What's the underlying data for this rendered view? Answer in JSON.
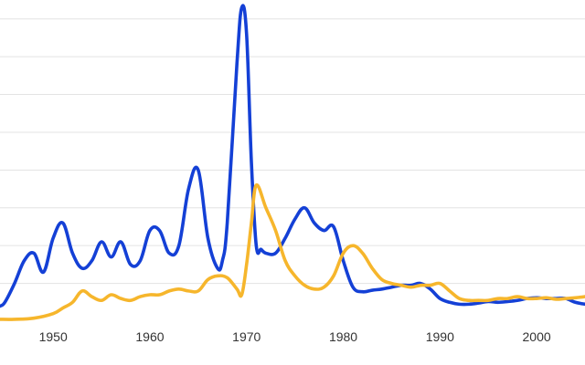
{
  "chart_data": {
    "type": "line",
    "title": "",
    "xlabel": "",
    "ylabel": "",
    "xlim": [
      1944.5,
      2005
    ],
    "ylim": [
      0,
      8.5
    ],
    "grid": "horizontal",
    "x_ticks": [
      1950,
      1960,
      1970,
      1980,
      1990,
      2000
    ],
    "x_tick_labels": [
      "1950",
      "1960",
      "1970",
      "1980",
      "1990",
      "2000"
    ],
    "y_gridlines": [
      1,
      2,
      3,
      4,
      5,
      6,
      7,
      8
    ],
    "colors": {
      "series_blue": "#1440d6",
      "series_gold": "#f6b62c",
      "grid": "#e3e3e3",
      "tick_text": "#333333"
    },
    "series": [
      {
        "color": "#1440d6",
        "x": [
          1944.5,
          1945,
          1946,
          1947,
          1948,
          1949,
          1950,
          1951,
          1952,
          1953,
          1954,
          1955,
          1956,
          1957,
          1958,
          1959,
          1960,
          1961,
          1962,
          1963,
          1964,
          1965,
          1966,
          1967,
          1967.5,
          1968,
          1969,
          1969.5,
          1970,
          1970.5,
          1971,
          1971.5,
          1972,
          1973,
          1974,
          1975,
          1976,
          1977,
          1978,
          1979,
          1980,
          1981,
          1982,
          1983,
          1984,
          1985,
          1986,
          1987,
          1988,
          1989,
          1990,
          1991,
          1992,
          1993,
          1994,
          1995,
          1996,
          1997,
          1998,
          1999,
          2000,
          2001,
          2002,
          2003,
          2004,
          2005
        ],
        "y": [
          0.4,
          0.5,
          1.0,
          1.6,
          1.8,
          1.3,
          2.2,
          2.6,
          1.8,
          1.4,
          1.6,
          2.1,
          1.7,
          2.1,
          1.5,
          1.6,
          2.4,
          2.4,
          1.8,
          2.0,
          3.5,
          4.0,
          2.2,
          1.4,
          1.6,
          2.6,
          6.8,
          8.3,
          7.6,
          4.2,
          2.0,
          1.9,
          1.8,
          1.8,
          2.2,
          2.7,
          3.0,
          2.6,
          2.4,
          2.5,
          1.6,
          0.9,
          0.78,
          0.82,
          0.85,
          0.9,
          0.95,
          0.95,
          1.0,
          0.85,
          0.6,
          0.5,
          0.45,
          0.45,
          0.48,
          0.52,
          0.5,
          0.52,
          0.55,
          0.6,
          0.62,
          0.6,
          0.6,
          0.6,
          0.5,
          0.45
        ]
      },
      {
        "color": "#f6b62c",
        "x": [
          1944.5,
          1946,
          1948,
          1950,
          1951,
          1952,
          1953,
          1954,
          1955,
          1956,
          1957,
          1958,
          1959,
          1960,
          1961,
          1962,
          1963,
          1964,
          1965,
          1966,
          1967,
          1968,
          1969,
          1969.5,
          1970,
          1970.5,
          1971,
          1972,
          1973,
          1974,
          1975,
          1976,
          1977,
          1978,
          1979,
          1980,
          1981,
          1982,
          1983,
          1984,
          1985,
          1986,
          1987,
          1988,
          1989,
          1990,
          1991,
          1992,
          1993,
          1994,
          1995,
          1996,
          1997,
          1998,
          1999,
          2000,
          2001,
          2002,
          2003,
          2004,
          2005
        ],
        "y": [
          0.05,
          0.05,
          0.08,
          0.2,
          0.35,
          0.5,
          0.8,
          0.65,
          0.55,
          0.7,
          0.6,
          0.55,
          0.65,
          0.7,
          0.7,
          0.8,
          0.85,
          0.8,
          0.8,
          1.1,
          1.2,
          1.15,
          0.85,
          0.7,
          1.5,
          2.6,
          3.6,
          3.0,
          2.4,
          1.6,
          1.2,
          0.95,
          0.85,
          0.9,
          1.2,
          1.8,
          2.0,
          1.8,
          1.4,
          1.1,
          1.0,
          0.95,
          0.9,
          0.95,
          0.95,
          1.0,
          0.8,
          0.6,
          0.55,
          0.55,
          0.55,
          0.6,
          0.6,
          0.65,
          0.6,
          0.6,
          0.62,
          0.58,
          0.6,
          0.62,
          0.65
        ]
      }
    ]
  }
}
